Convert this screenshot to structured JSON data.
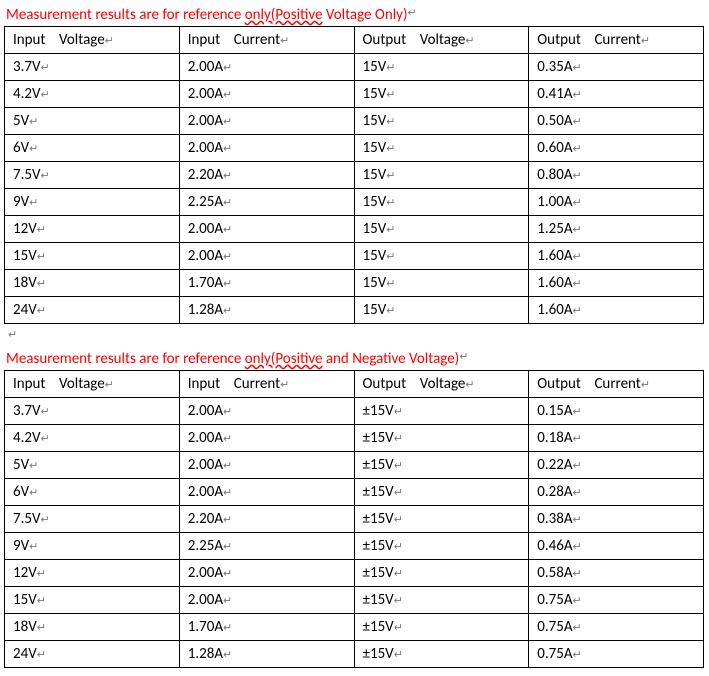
{
  "title_color": "#ff0000",
  "text_color": "#000000",
  "paramark_color": "#777777",
  "border_color": "#000000",
  "table1": {
    "title_prefix": "Measurement results are for reference ",
    "title_underlined": "only(Positive",
    "title_suffix": " Voltage Only)",
    "columns": [
      "Input    Voltage",
      "Input    Current",
      "Output    Voltage",
      "Output    Current"
    ],
    "rows": [
      [
        "3.7V",
        "2.00A",
        "15V",
        "0.35A"
      ],
      [
        "4.2V",
        "2.00A",
        "15V",
        "0.41A"
      ],
      [
        "5V",
        "2.00A",
        "15V",
        "0.50A"
      ],
      [
        "6V",
        "2.00A",
        "15V",
        "0.60A"
      ],
      [
        "7.5V",
        "2.20A",
        "15V",
        "0.80A"
      ],
      [
        "9V",
        "2.25A",
        "15V",
        "1.00A"
      ],
      [
        "12V",
        "2.00A",
        "15V",
        "1.25A"
      ],
      [
        "15V",
        "2.00A",
        "15V",
        "1.60A"
      ],
      [
        "18V",
        "1.70A",
        "15V",
        "1.60A"
      ],
      [
        "24V",
        "1.28A",
        "15V",
        "1.60A"
      ]
    ]
  },
  "table2": {
    "title_prefix": "Measurement results are for reference ",
    "title_underlined": "only(Positive",
    "title_suffix": " and Negative Voltage)",
    "columns": [
      "Input    Voltage",
      "Input    Current",
      "Output    Voltage",
      "Output    Current"
    ],
    "rows": [
      [
        "3.7V",
        "2.00A",
        "±15V",
        "0.15A"
      ],
      [
        "4.2V",
        "2.00A",
        "±15V",
        "0.18A"
      ],
      [
        "5V",
        "2.00A",
        "±15V",
        "0.22A"
      ],
      [
        "6V",
        "2.00A",
        "±15V",
        "0.28A"
      ],
      [
        "7.5V",
        "2.20A",
        "±15V",
        "0.38A"
      ],
      [
        "9V",
        "2.25A",
        "±15V",
        "0.46A"
      ],
      [
        "12V",
        "2.00A",
        "±15V",
        "0.58A"
      ],
      [
        "15V",
        "2.00A",
        "±15V",
        "0.75A"
      ],
      [
        "18V",
        "1.70A",
        "±15V",
        "0.75A"
      ],
      [
        "24V",
        "1.28A",
        "±15V",
        "0.75A"
      ]
    ]
  }
}
